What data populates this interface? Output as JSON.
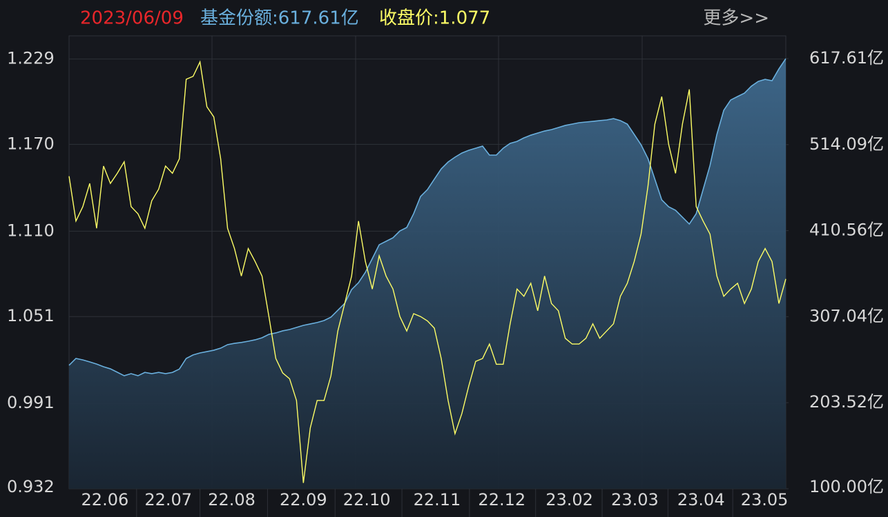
{
  "header": {
    "date": "2023/06/09",
    "more": "更多>>"
  },
  "chart_data": {
    "type": "dual-line",
    "xticks": [
      {
        "value": 5.2,
        "label": "22.06"
      },
      {
        "value": 14.4,
        "label": "22.07"
      },
      {
        "value": 23.6,
        "label": "22.08"
      },
      {
        "value": 34,
        "label": "22.09"
      },
      {
        "value": 43.2,
        "label": "22.10"
      },
      {
        "value": 53.4,
        "label": "22.11"
      },
      {
        "value": 62.8,
        "label": "22.12"
      },
      {
        "value": 72.6,
        "label": "23.02"
      },
      {
        "value": 82.1,
        "label": "23.03"
      },
      {
        "value": 91.7,
        "label": "23.04"
      },
      {
        "value": 100.9,
        "label": "23.05"
      }
    ],
    "xlim": [
      0,
      104
    ],
    "ylim": [
      0.932,
      1.245
    ],
    "yticks": [
      {
        "value": 1.229,
        "label": "1.229"
      },
      {
        "value": 1.17,
        "label": "1.170"
      },
      {
        "value": 1.11,
        "label": "1.110"
      },
      {
        "value": 1.051,
        "label": "1.051"
      },
      {
        "value": 0.991,
        "label": "0.991"
      },
      {
        "value": 0.932,
        "label": "0.932"
      }
    ],
    "y2lim": [
      100,
      645
    ],
    "y2ticks": [
      {
        "value": 617.61,
        "label": "617.61亿"
      },
      {
        "value": 514.09,
        "label": "514.09亿"
      },
      {
        "value": 410.56,
        "label": "410.56亿"
      },
      {
        "value": 307.04,
        "label": "307.04亿"
      },
      {
        "value": 203.52,
        "label": "203.52亿"
      },
      {
        "value": 100,
        "label": "100.00亿"
      }
    ],
    "grid": true,
    "series": [
      {
        "name": "基金份额:617.61亿",
        "color": "#6ab0de",
        "axis": "y2",
        "area": true,
        "values": [
          248.5,
          256.8,
          255,
          252.6,
          250,
          246.8,
          244.3,
          240.2,
          236,
          238.5,
          236,
          240,
          238.5,
          240,
          238.5,
          240,
          244,
          256.8,
          261,
          263.4,
          265,
          266.7,
          269.2,
          273.4,
          275,
          276,
          277.5,
          279.2,
          281.7,
          285.8,
          287.5,
          290,
          291.6,
          294.1,
          296.6,
          298.3,
          300,
          302.4,
          306.5,
          314.8,
          323.1,
          339.7,
          348,
          360.5,
          377,
          393.6,
          397.8,
          402,
          410.2,
          414.4,
          431,
          451.7,
          460,
          472.5,
          484.9,
          493.2,
          499,
          504,
          507.3,
          509.8,
          512.3,
          501.5,
          501.5,
          509.8,
          515.6,
          518,
          522.2,
          525.5,
          528,
          530.5,
          532.2,
          534.7,
          537.2,
          538.8,
          540.5,
          541.3,
          542.1,
          543,
          543.8,
          545.4,
          543,
          538.8,
          526.4,
          513.9,
          497.3,
          472.5,
          447.6,
          439.3,
          435.1,
          426.8,
          418.5,
          431,
          460,
          489,
          526.4,
          555.4,
          567.8,
          572,
          576.1,
          584.4,
          590.2,
          592.7,
          591,
          605.2,
          617.61
        ]
      },
      {
        "name": "收盘价:1.077",
        "color": "#ffff66",
        "axis": "y",
        "values": [
          1.148,
          1.117,
          1.127,
          1.143,
          1.112,
          1.155,
          1.143,
          1.15,
          1.158,
          1.127,
          1.122,
          1.112,
          1.131,
          1.139,
          1.155,
          1.15,
          1.16,
          1.215,
          1.217,
          1.227,
          1.196,
          1.189,
          1.16,
          1.112,
          1.098,
          1.079,
          1.098,
          1.089,
          1.079,
          1.051,
          1.022,
          1.012,
          1.008,
          0.993,
          0.936,
          0.974,
          0.993,
          0.993,
          1.01,
          1.041,
          1.06,
          1.079,
          1.117,
          1.089,
          1.07,
          1.093,
          1.079,
          1.07,
          1.051,
          1.041,
          1.053,
          1.051,
          1.048,
          1.043,
          1.022,
          0.993,
          0.97,
          0.984,
          1.003,
          1.02,
          1.022,
          1.032,
          1.018,
          1.018,
          1.046,
          1.07,
          1.065,
          1.074,
          1.055,
          1.079,
          1.06,
          1.055,
          1.036,
          1.032,
          1.032,
          1.036,
          1.046,
          1.036,
          1.041,
          1.046,
          1.065,
          1.074,
          1.089,
          1.108,
          1.141,
          1.184,
          1.203,
          1.17,
          1.15,
          1.184,
          1.208,
          1.127,
          1.117,
          1.108,
          1.079,
          1.065,
          1.07,
          1.074,
          1.06,
          1.07,
          1.089,
          1.098,
          1.089,
          1.06,
          1.077
        ]
      }
    ]
  }
}
